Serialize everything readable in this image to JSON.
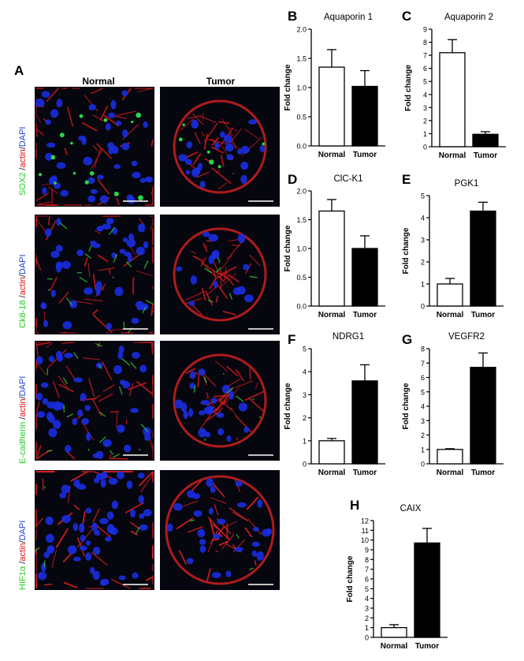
{
  "figure": {
    "panel_a_letter": "A",
    "col_normal": "Normal",
    "col_tumor": "Tumor",
    "rows": [
      {
        "marker": "SOX2",
        "sep1": " /",
        "actin": "actin",
        "sep2": "/",
        "dapi": "DAPI",
        "marker_color": "#22cc22"
      },
      {
        "marker": "Ck8-18",
        "sep1": " /",
        "actin": "actin",
        "sep2": "/",
        "dapi": "DAPI",
        "marker_color": "#22cc22"
      },
      {
        "marker": "E-cadherin",
        "sep1": " /",
        "actin": "actin",
        "sep2": "/",
        "dapi": "DAPI",
        "marker_color": "#22cc22"
      },
      {
        "marker": "HIF1α",
        "sep1": " /",
        "actin": "actin",
        "sep2": "/",
        "dapi": "DAPI",
        "marker_color": "#22cc22"
      }
    ],
    "scale_bar_color": "#ffffff"
  },
  "colors": {
    "normal_bar": "#ffffff",
    "tumor_bar": "#000000",
    "axis": "#000000"
  },
  "chart_data": [
    {
      "panel": "B",
      "type": "bar",
      "title": "Aquaporin 1",
      "ylabel": "Fold change",
      "categories": [
        "Normal",
        "Tumor"
      ],
      "values": [
        1.35,
        1.02
      ],
      "errors": [
        0.3,
        0.27
      ],
      "ylim": [
        0,
        2.0
      ],
      "ticks": [
        "0.0",
        "0.5",
        "1.0",
        "1.5",
        "2.0"
      ],
      "tick_values": [
        0,
        0.5,
        1.0,
        1.5,
        2.0
      ]
    },
    {
      "panel": "C",
      "type": "bar",
      "title": "Aquaporin 2",
      "ylabel": "Fold change",
      "categories": [
        "Normal",
        "Tumor"
      ],
      "values": [
        7.2,
        0.95
      ],
      "errors": [
        1.0,
        0.2
      ],
      "ylim": [
        0,
        9
      ],
      "ticks": [
        "0",
        "1",
        "2",
        "3",
        "4",
        "5",
        "6",
        "7",
        "8",
        "9"
      ],
      "tick_values": [
        0,
        1,
        2,
        3,
        4,
        5,
        6,
        7,
        8,
        9
      ]
    },
    {
      "panel": "D",
      "type": "bar",
      "title": "ClC-K1",
      "ylabel": "Fold change",
      "categories": [
        "Normal",
        "Tumor"
      ],
      "values": [
        1.65,
        1.0
      ],
      "errors": [
        0.2,
        0.22
      ],
      "ylim": [
        0,
        2.0
      ],
      "ticks": [
        "0.0",
        "0.5",
        "1.0",
        "1.5",
        "2.0"
      ],
      "tick_values": [
        0,
        0.5,
        1.0,
        1.5,
        2.0
      ]
    },
    {
      "panel": "E",
      "type": "bar",
      "title": "PGK1",
      "ylabel": "Fold change",
      "categories": [
        "Normal",
        "Tumor"
      ],
      "values": [
        1.0,
        4.3
      ],
      "errors": [
        0.25,
        0.4
      ],
      "ylim": [
        0,
        5
      ],
      "ticks": [
        "0",
        "1",
        "2",
        "3",
        "4",
        "5"
      ],
      "tick_values": [
        0,
        1,
        2,
        3,
        4,
        5
      ]
    },
    {
      "panel": "F",
      "type": "bar",
      "title": "NDRG1",
      "ylabel": "Fold change",
      "categories": [
        "Normal",
        "Tumor"
      ],
      "values": [
        1.0,
        3.6
      ],
      "errors": [
        0.1,
        0.7
      ],
      "ylim": [
        0,
        5
      ],
      "ticks": [
        "0",
        "1",
        "2",
        "3",
        "4",
        "5"
      ],
      "tick_values": [
        0,
        1,
        2,
        3,
        4,
        5
      ]
    },
    {
      "panel": "G",
      "type": "bar",
      "title": "VEGFR2",
      "ylabel": "Fold change",
      "categories": [
        "Normal",
        "Tumor"
      ],
      "values": [
        1.0,
        6.7
      ],
      "errors": [
        0.05,
        1.0
      ],
      "ylim": [
        0,
        8
      ],
      "ticks": [
        "0",
        "1",
        "2",
        "3",
        "4",
        "5",
        "6",
        "7",
        "8"
      ],
      "tick_values": [
        0,
        1,
        2,
        3,
        4,
        5,
        6,
        7,
        8
      ]
    },
    {
      "panel": "H",
      "type": "bar",
      "title": "CAIX",
      "ylabel": "Fold change",
      "categories": [
        "Normal",
        "Tumor"
      ],
      "values": [
        1.0,
        9.7
      ],
      "errors": [
        0.3,
        1.5
      ],
      "ylim": [
        0,
        12
      ],
      "ticks": [
        "0",
        "1",
        "2",
        "3",
        "4",
        "5",
        "6",
        "7",
        "8",
        "9",
        "10",
        "11",
        "12"
      ],
      "tick_values": [
        0,
        1,
        2,
        3,
        4,
        5,
        6,
        7,
        8,
        9,
        10,
        11,
        12
      ]
    }
  ]
}
